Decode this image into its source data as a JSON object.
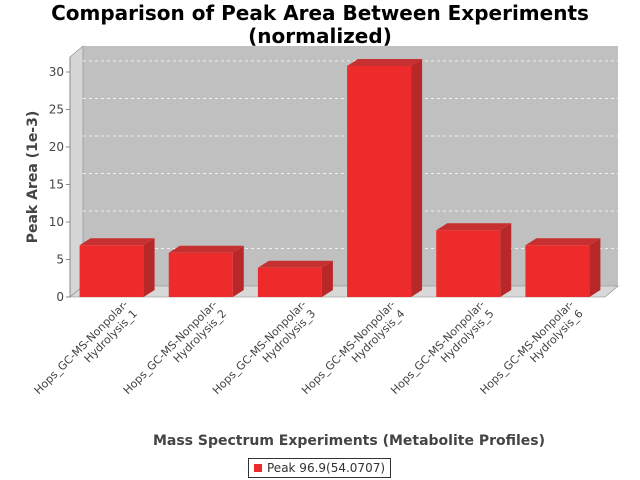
{
  "chart_data": {
    "type": "bar",
    "title_lines": [
      "Comparison of Peak Area Between Experiments",
      "(normalized)"
    ],
    "xlabel": "Mass Spectrum Experiments (Metabolite Profiles)",
    "ylabel": "Peak Area (1e-3)",
    "ylim": [
      0,
      32
    ],
    "yticks": [
      "0",
      "5",
      "10",
      "15",
      "20",
      "25",
      "30"
    ],
    "categories": [
      [
        "Hops_GC-MS-Nonpolar-",
        "Hydrolysis_1"
      ],
      [
        "Hops_GC-MS-Nonpolar-",
        "Hydrolysis_2"
      ],
      [
        "Hops_GC-MS-Nonpolar-",
        "Hydrolysis_3"
      ],
      [
        "Hops_GC-MS-Nonpolar-",
        "Hydrolysis_4"
      ],
      [
        "Hops_GC-MS-Nonpolar-",
        "Hydrolysis_5"
      ],
      [
        "Hops_GC-MS-Nonpolar-",
        "Hydrolysis_6"
      ]
    ],
    "series": [
      {
        "name": "Peak 96.9(54.0707)",
        "color": "#ee2b2b",
        "values": [
          6.9,
          5.9,
          3.9,
          30.8,
          8.9,
          6.9
        ]
      }
    ],
    "grid": true,
    "legend": "bottom-center",
    "style": "3d"
  }
}
